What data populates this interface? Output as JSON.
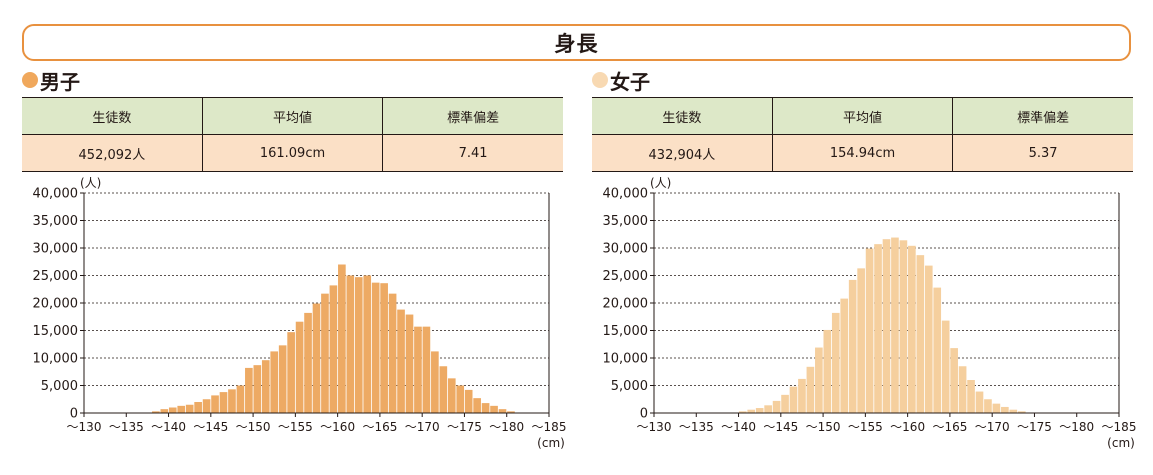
{
  "title": "身長",
  "tick_labels": [
    "〜130",
    "〜135",
    "〜140",
    "〜145",
    "〜150",
    "〜155",
    "〜160",
    "〜165",
    "〜170",
    "〜175",
    "〜180",
    "〜185"
  ],
  "y_tick_labels": [
    "0",
    "5,000",
    "10,000",
    "15,000",
    "20,000",
    "25,000",
    "30,000",
    "35,000",
    "40,000"
  ],
  "chart_data": [
    {
      "type": "bar",
      "panel": "male",
      "title": "男子",
      "stats": {
        "headers": [
          "生徒数",
          "平均値",
          "標準偏差"
        ],
        "values": [
          "452,092人",
          "161.09cm",
          "7.41"
        ]
      },
      "x_unit": "(cm)",
      "y_unit": "(人)",
      "xlim": [
        130,
        185
      ],
      "ylim": [
        0,
        40000
      ],
      "bin_width": 1,
      "bin_start": 130,
      "grid": true,
      "bar_color": "#edaa64",
      "dot_color": "#f0a85c",
      "values": [
        0,
        0,
        0,
        0,
        0,
        0,
        0,
        0,
        300,
        700,
        1000,
        1300,
        1500,
        2000,
        2500,
        3200,
        3800,
        4300,
        5000,
        8200,
        8700,
        9600,
        11200,
        12300,
        14700,
        16600,
        18200,
        19900,
        21700,
        23200,
        27000,
        25000,
        24700,
        25000,
        23700,
        23600,
        21700,
        18800,
        17900,
        15700,
        15700,
        11200,
        8500,
        6300,
        5000,
        4200,
        2700,
        1800,
        1300,
        700,
        300,
        0,
        0,
        0,
        0
      ]
    },
    {
      "type": "bar",
      "panel": "female",
      "title": "女子",
      "stats": {
        "headers": [
          "生徒数",
          "平均値",
          "標準偏差"
        ],
        "values": [
          "432,904人",
          "154.94cm",
          "5.37"
        ]
      },
      "x_unit": "(cm)",
      "y_unit": "(人)",
      "xlim": [
        130,
        185
      ],
      "ylim": [
        0,
        40000
      ],
      "bin_width": 1,
      "bin_start": 130,
      "grid": true,
      "bar_color": "#f5cf9e",
      "dot_color": "#f8d9b2",
      "values": [
        0,
        0,
        0,
        0,
        0,
        0,
        0,
        0,
        0,
        0,
        300,
        600,
        900,
        1400,
        2200,
        3300,
        4800,
        6200,
        8400,
        11900,
        15100,
        18200,
        20800,
        24200,
        26300,
        29900,
        30700,
        31600,
        31900,
        31400,
        30400,
        28700,
        26800,
        22800,
        16800,
        11800,
        8500,
        6000,
        3900,
        2500,
        1700,
        1100,
        600,
        300,
        0,
        0,
        0,
        0,
        0,
        0,
        0,
        0,
        0,
        0,
        0
      ]
    }
  ]
}
